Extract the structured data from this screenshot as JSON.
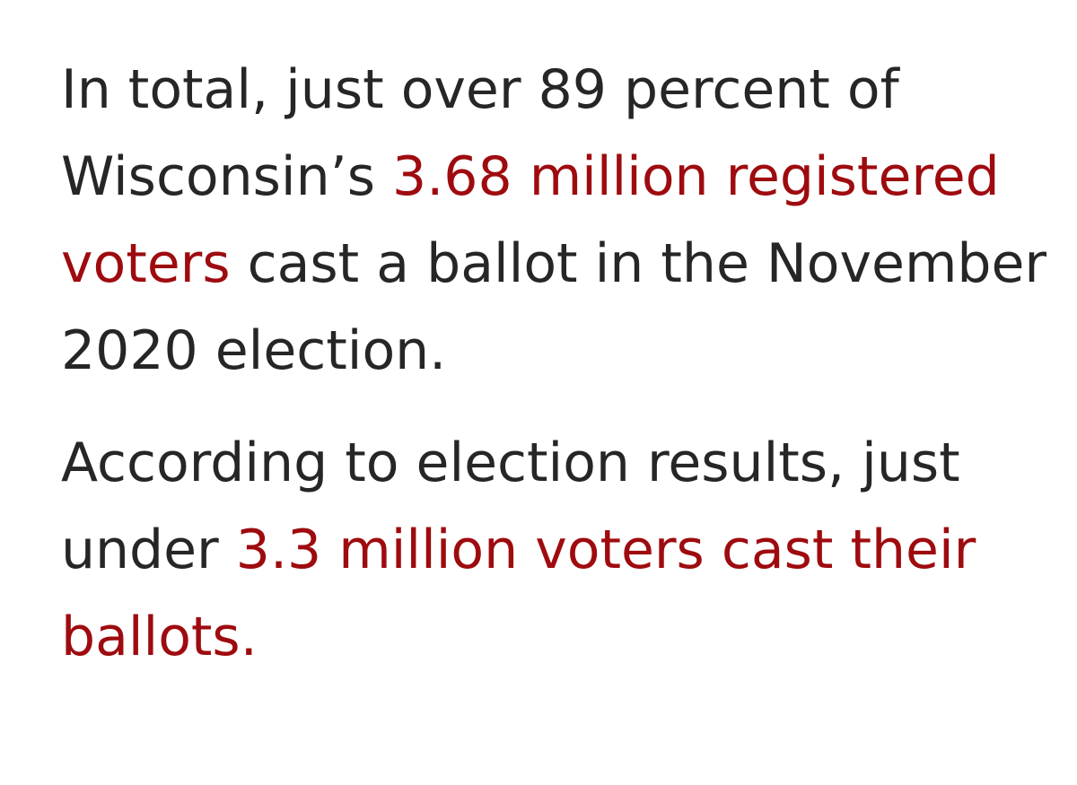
{
  "colors": {
    "text": "#262626",
    "link": "#9e0b0f",
    "background": "#ffffff"
  },
  "paragraphs": [
    {
      "text_before": "In total, just over 89 percent of Wisconsin’s ",
      "link_text": "3.68 million registered voters",
      "text_after": " cast a ballot in the November 2020 election."
    },
    {
      "text_before": "According to election results, just under ",
      "link_text": "3.3 million voters cast their ballots.",
      "text_after": ""
    }
  ]
}
